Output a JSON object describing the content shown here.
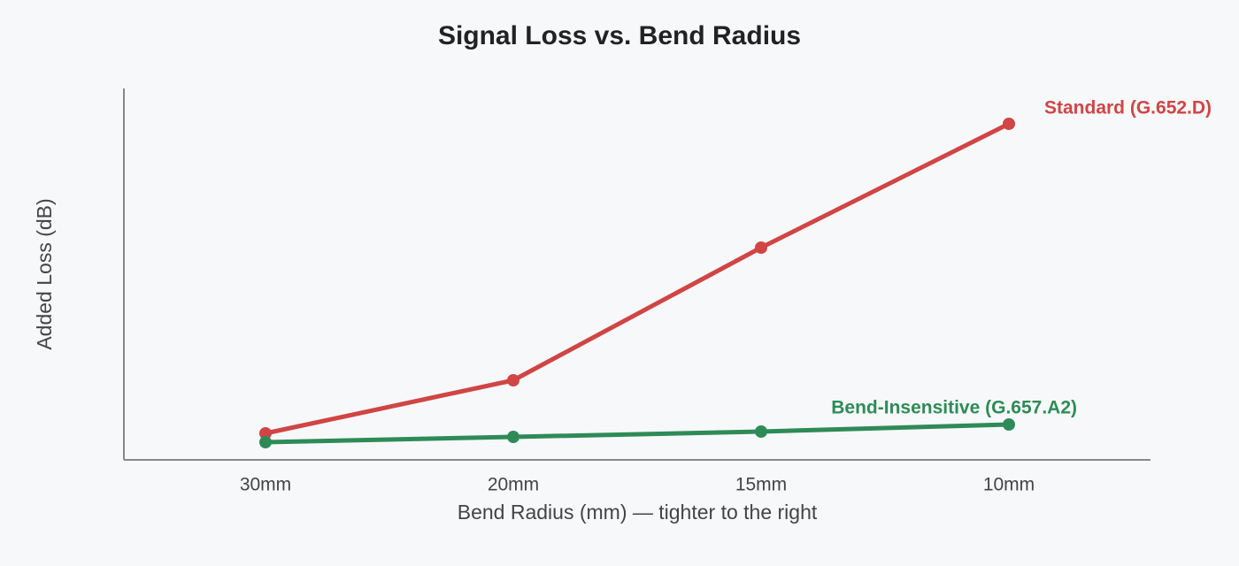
{
  "chart_data": {
    "type": "line",
    "title": "Signal Loss vs. Bend Radius",
    "x_label": "Bend Radius (mm) — tighter to the right",
    "y_label": "Added Loss (dB)",
    "categories": [
      "30mm",
      "20mm",
      "15mm",
      "10mm"
    ],
    "series": [
      {
        "name": "Standard (G.652.D)",
        "color": "#d04545",
        "values": [
          0.3,
          0.9,
          2.4,
          3.8
        ]
      },
      {
        "name": "Bend-Insensitive (G.657.A2)",
        "color": "#2e8b57",
        "values": [
          0.2,
          0.26,
          0.32,
          0.4
        ]
      }
    ],
    "ylim": [
      0,
      4.2
    ],
    "grid": false
  }
}
